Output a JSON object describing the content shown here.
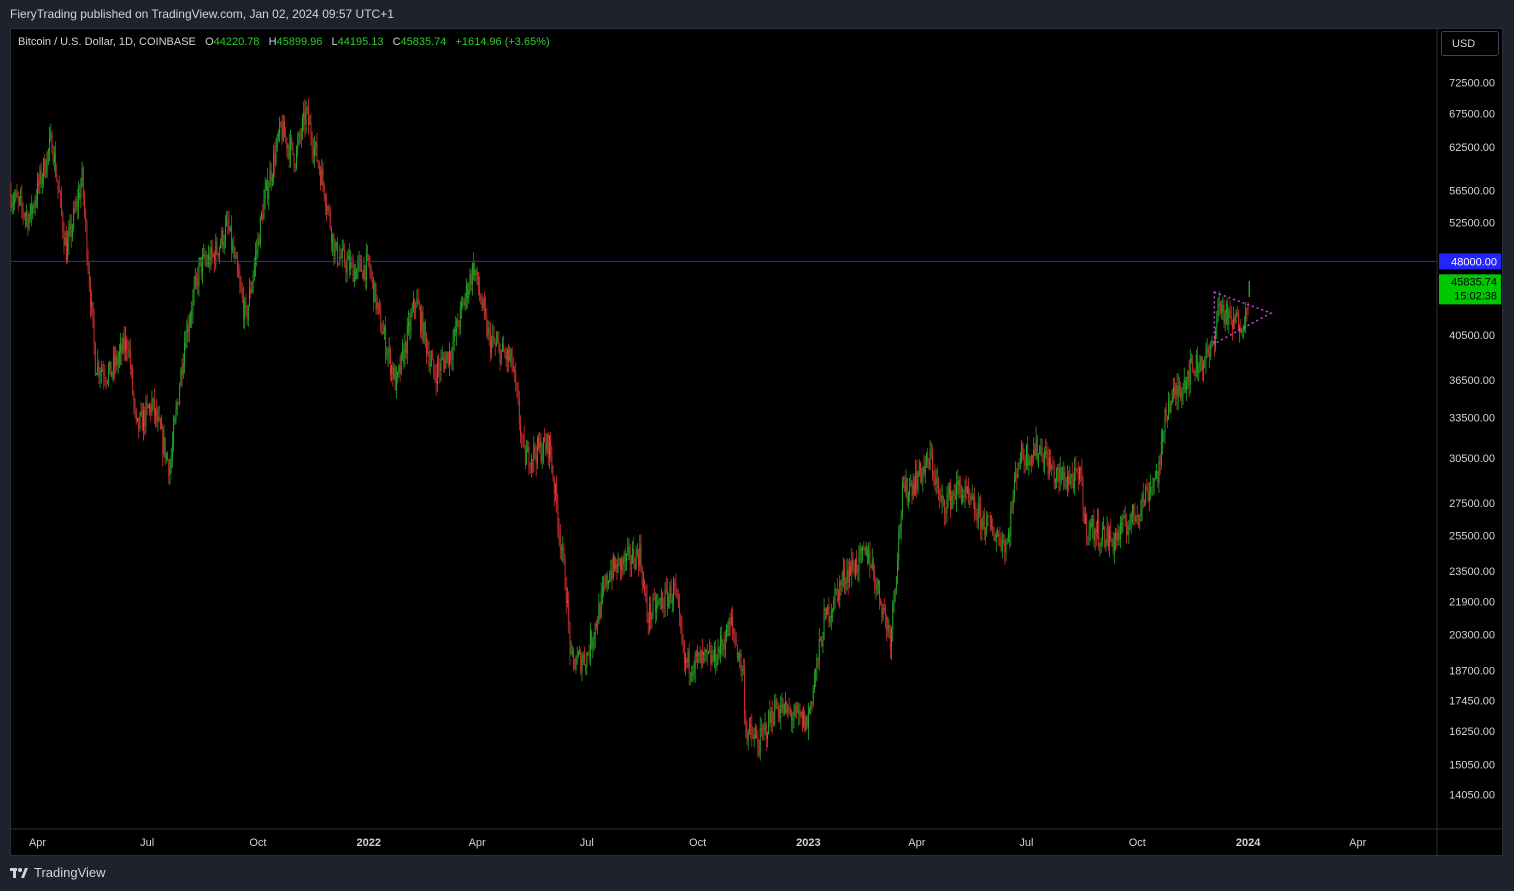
{
  "header": {
    "published_text": "FieryTrading published on TradingView.com, Jan 02, 2024 09:57 UTC+1"
  },
  "legend": {
    "symbol": "Bitcoin / U.S. Dollar, 1D, COINBASE",
    "open_key": "O",
    "open": "44220.78",
    "high_key": "H",
    "high": "45899.96",
    "low_key": "L",
    "low": "44195.13",
    "close_key": "C",
    "close": "45835.74",
    "change": "+1614.96 (+3.65%)"
  },
  "currency_button": {
    "label": "USD"
  },
  "footer": {
    "brand": "TradingView",
    "brand_icon": "tradingview-logo-icon"
  },
  "colors": {
    "up": "#26a926",
    "down": "#d32f2f",
    "grid_line": "#2a2e39",
    "horizontal_line": "#2424ff",
    "triangle": "#d946ef",
    "price_badge": "#00c800"
  },
  "chart_data": {
    "type": "candlestick",
    "title": "Bitcoin / U.S. Dollar, 1D, COINBASE",
    "y_scale": "log",
    "ylim": [
      13000,
      82000
    ],
    "y_ticks": [
      "72500.00",
      "67500.00",
      "62500.00",
      "56500.00",
      "52500.00",
      "48000.00",
      "40500.00",
      "36500.00",
      "33500.00",
      "30500.00",
      "27500.00",
      "25500.00",
      "23500.00",
      "21900.00",
      "20300.00",
      "18700.00",
      "17450.00",
      "16250.00",
      "15050.00",
      "14050.00"
    ],
    "y_tick_values": [
      72500,
      67500,
      62500,
      56500,
      52500,
      48000,
      40500,
      36500,
      33500,
      30500,
      27500,
      25500,
      23500,
      21900,
      20300,
      18700,
      17450,
      16250,
      15050,
      14050
    ],
    "x_ticks": [
      {
        "label": "Apr",
        "date": "2021-04-01"
      },
      {
        "label": "Jul",
        "date": "2021-07-01"
      },
      {
        "label": "Oct",
        "date": "2021-10-01"
      },
      {
        "label": "2022",
        "date": "2022-01-01"
      },
      {
        "label": "Apr",
        "date": "2022-04-01"
      },
      {
        "label": "Jul",
        "date": "2022-07-01"
      },
      {
        "label": "Oct",
        "date": "2022-10-01"
      },
      {
        "label": "2023",
        "date": "2023-01-01"
      },
      {
        "label": "Apr",
        "date": "2023-04-01"
      },
      {
        "label": "Jul",
        "date": "2023-07-01"
      },
      {
        "label": "Oct",
        "date": "2023-10-01"
      },
      {
        "label": "2024",
        "date": "2024-01-01"
      },
      {
        "label": "Apr",
        "date": "2024-04-01"
      }
    ],
    "x_range": [
      "2021-03-10",
      "2024-06-05"
    ],
    "price_path": [
      {
        "date": "2021-03-10",
        "close": 56000
      },
      {
        "date": "2021-03-25",
        "close": 53000
      },
      {
        "date": "2021-04-13",
        "close": 63500
      },
      {
        "date": "2021-04-25",
        "close": 49000
      },
      {
        "date": "2021-05-08",
        "close": 58000
      },
      {
        "date": "2021-05-19",
        "close": 38000
      },
      {
        "date": "2021-05-31",
        "close": 37000
      },
      {
        "date": "2021-06-15",
        "close": 40000
      },
      {
        "date": "2021-06-22",
        "close": 32500
      },
      {
        "date": "2021-07-05",
        "close": 34500
      },
      {
        "date": "2021-07-20",
        "close": 29800
      },
      {
        "date": "2021-08-01",
        "close": 40000
      },
      {
        "date": "2021-08-14",
        "close": 47500
      },
      {
        "date": "2021-08-25",
        "close": 48500
      },
      {
        "date": "2021-09-06",
        "close": 52000
      },
      {
        "date": "2021-09-21",
        "close": 42000
      },
      {
        "date": "2021-10-06",
        "close": 55000
      },
      {
        "date": "2021-10-20",
        "close": 65000
      },
      {
        "date": "2021-11-01",
        "close": 61000
      },
      {
        "date": "2021-11-10",
        "close": 67500
      },
      {
        "date": "2021-11-25",
        "close": 57000
      },
      {
        "date": "2021-12-04",
        "close": 49000
      },
      {
        "date": "2021-12-20",
        "close": 47000
      },
      {
        "date": "2022-01-01",
        "close": 47500
      },
      {
        "date": "2022-01-10",
        "close": 42000
      },
      {
        "date": "2022-01-24",
        "close": 36000
      },
      {
        "date": "2022-02-09",
        "close": 44000
      },
      {
        "date": "2022-02-24",
        "close": 37000
      },
      {
        "date": "2022-03-10",
        "close": 39000
      },
      {
        "date": "2022-03-29",
        "close": 47500
      },
      {
        "date": "2022-04-11",
        "close": 40000
      },
      {
        "date": "2022-04-30",
        "close": 38000
      },
      {
        "date": "2022-05-10",
        "close": 30500
      },
      {
        "date": "2022-05-31",
        "close": 31500
      },
      {
        "date": "2022-06-14",
        "close": 22500
      },
      {
        "date": "2022-06-18",
        "close": 19000
      },
      {
        "date": "2022-07-01",
        "close": 19300
      },
      {
        "date": "2022-07-20",
        "close": 23500
      },
      {
        "date": "2022-08-14",
        "close": 24500
      },
      {
        "date": "2022-08-20",
        "close": 21200
      },
      {
        "date": "2022-09-12",
        "close": 22500
      },
      {
        "date": "2022-09-20",
        "close": 19000
      },
      {
        "date": "2022-10-15",
        "close": 19200
      },
      {
        "date": "2022-10-29",
        "close": 20800
      },
      {
        "date": "2022-11-08",
        "close": 18500
      },
      {
        "date": "2022-11-10",
        "close": 16300
      },
      {
        "date": "2022-11-21",
        "close": 15800
      },
      {
        "date": "2022-12-05",
        "close": 17200
      },
      {
        "date": "2022-12-31",
        "close": 16550
      },
      {
        "date": "2023-01-14",
        "close": 20900
      },
      {
        "date": "2023-02-01",
        "close": 23400
      },
      {
        "date": "2023-02-20",
        "close": 24500
      },
      {
        "date": "2023-03-10",
        "close": 20200
      },
      {
        "date": "2023-03-20",
        "close": 28000
      },
      {
        "date": "2023-04-13",
        "close": 30400
      },
      {
        "date": "2023-04-21",
        "close": 27300
      },
      {
        "date": "2023-05-06",
        "close": 28500
      },
      {
        "date": "2023-05-25",
        "close": 26400
      },
      {
        "date": "2023-06-15",
        "close": 25000
      },
      {
        "date": "2023-06-24",
        "close": 30500
      },
      {
        "date": "2023-07-13",
        "close": 31200
      },
      {
        "date": "2023-07-25",
        "close": 29200
      },
      {
        "date": "2023-08-16",
        "close": 29000
      },
      {
        "date": "2023-08-18",
        "close": 26200
      },
      {
        "date": "2023-09-11",
        "close": 25200
      },
      {
        "date": "2023-09-30",
        "close": 26900
      },
      {
        "date": "2023-10-20",
        "close": 29800
      },
      {
        "date": "2023-10-24",
        "close": 34000
      },
      {
        "date": "2023-11-15",
        "close": 37500
      },
      {
        "date": "2023-12-01",
        "close": 38700
      },
      {
        "date": "2023-12-08",
        "close": 43500
      },
      {
        "date": "2023-12-18",
        "close": 41500
      },
      {
        "date": "2023-12-31",
        "close": 42250
      },
      {
        "date": "2024-01-02",
        "close": 45835.74
      }
    ],
    "horizontal_line": {
      "price": 48000,
      "label": "48000.00"
    },
    "last_price": {
      "price": 45835.74,
      "label": "45835.74",
      "countdown": "15:02:38"
    },
    "triangle": [
      {
        "date": "2023-12-04",
        "price": 44700
      },
      {
        "date": "2024-01-20",
        "price": 42600
      },
      {
        "date": "2023-12-04",
        "price": 39700
      }
    ]
  }
}
